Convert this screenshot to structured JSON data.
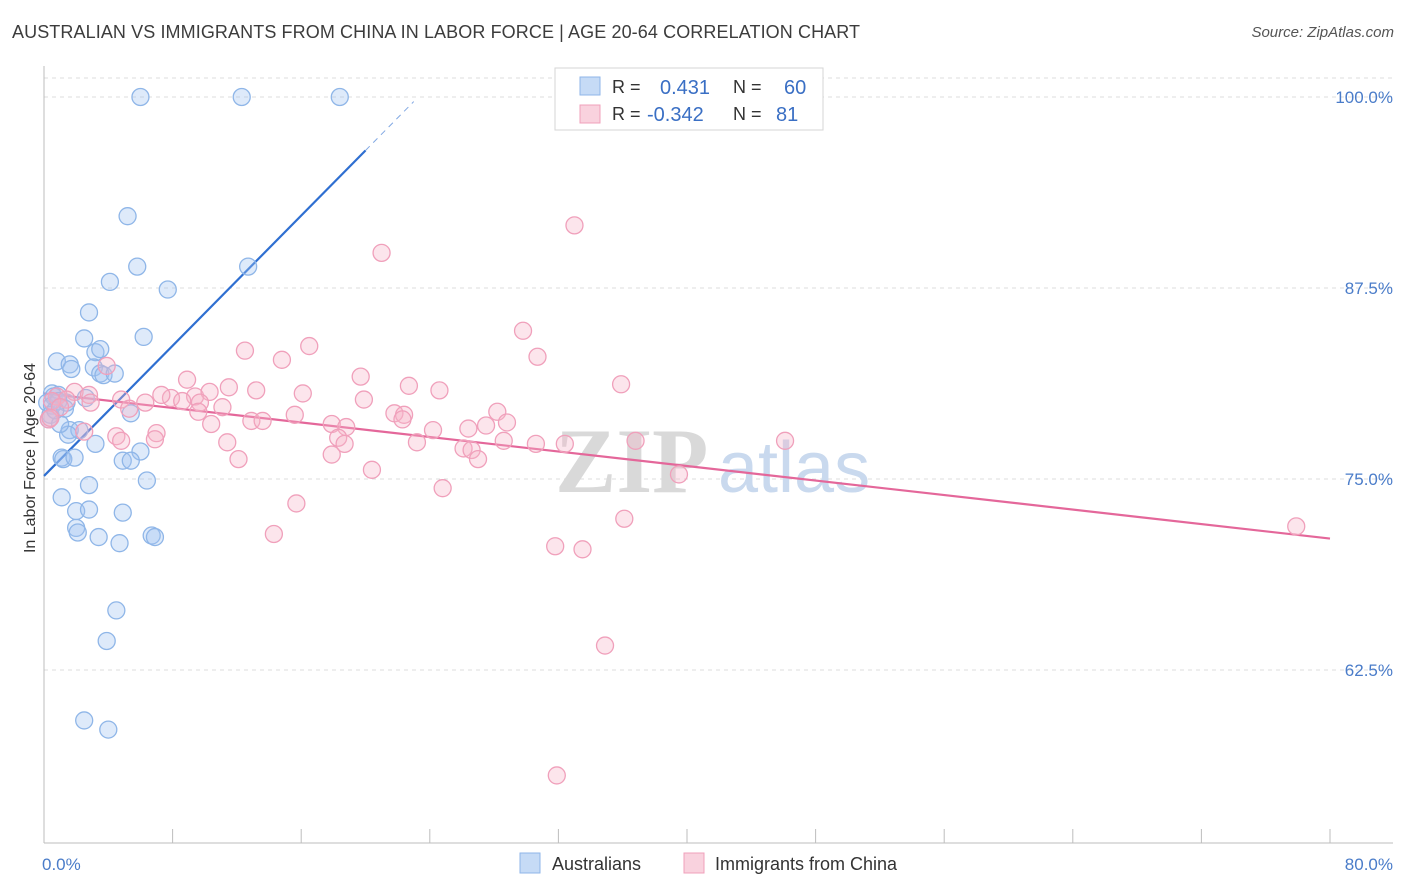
{
  "title": "AUSTRALIAN VS IMMIGRANTS FROM CHINA IN LABOR FORCE | AGE 20-64 CORRELATION CHART",
  "source": "Source: ZipAtlas.com",
  "watermark": {
    "zip": "ZIP",
    "atlas": "atlas"
  },
  "colors": {
    "australians": "#8fb6e8",
    "australians_fill": "rgba(160,195,240,0.35)",
    "australians_line": "#2f6fd1",
    "china": "#f0a0bb",
    "china_fill": "rgba(245,180,200,0.35)",
    "china_line": "#e4679a",
    "tick_label": "#4a7cc9",
    "grid": "#dcdcdc"
  },
  "legend": {
    "rows": [
      {
        "r_label": "R =",
        "r_value": "0.431",
        "n_label": "N =",
        "n_value": "60"
      },
      {
        "r_label": "R =",
        "r_value": "-0.342",
        "n_label": "N =",
        "n_value": "81"
      }
    ]
  },
  "bottom_legend": [
    "Australians",
    "Immigrants from China"
  ],
  "chart_data": {
    "type": "scatter",
    "title": "AUSTRALIAN VS IMMIGRANTS FROM CHINA IN LABOR FORCE | AGE 20-64 CORRELATION CHART",
    "xlabel": "",
    "ylabel": "In Labor Force | Age 20-64",
    "xlim": [
      0,
      80
    ],
    "ylim": [
      50,
      102
    ],
    "x_tick_labels": [
      "0.0%",
      "80.0%"
    ],
    "y_ticks": [
      62.5,
      75.0,
      87.5,
      100.0
    ],
    "y_tick_labels": [
      "62.5%",
      "75.0%",
      "87.5%",
      "100.0%"
    ],
    "grid": true,
    "legend_position": "top-center",
    "series": [
      {
        "name": "Australians",
        "points": [
          [
            6.0,
            100.0
          ],
          [
            12.3,
            100.0
          ],
          [
            18.4,
            100.0
          ],
          [
            5.2,
            92.2
          ],
          [
            5.8,
            88.9
          ],
          [
            12.7,
            88.9
          ],
          [
            4.1,
            87.9
          ],
          [
            7.7,
            87.4
          ],
          [
            2.8,
            85.9
          ],
          [
            2.5,
            84.2
          ],
          [
            6.2,
            84.3
          ],
          [
            3.2,
            83.3
          ],
          [
            3.5,
            83.5
          ],
          [
            0.8,
            82.7
          ],
          [
            1.6,
            82.5
          ],
          [
            1.7,
            82.2
          ],
          [
            3.1,
            82.3
          ],
          [
            3.5,
            81.9
          ],
          [
            3.7,
            81.8
          ],
          [
            4.4,
            81.9
          ],
          [
            0.5,
            80.6
          ],
          [
            0.6,
            80.4
          ],
          [
            0.9,
            80.5
          ],
          [
            0.2,
            80.0
          ],
          [
            0.5,
            79.8
          ],
          [
            1.4,
            80.0
          ],
          [
            0.4,
            79.2
          ],
          [
            0.3,
            78.9
          ],
          [
            5.4,
            79.3
          ],
          [
            1.6,
            78.2
          ],
          [
            2.2,
            78.2
          ],
          [
            1.5,
            77.9
          ],
          [
            3.2,
            77.3
          ],
          [
            6.0,
            76.8
          ],
          [
            1.1,
            76.4
          ],
          [
            1.2,
            76.3
          ],
          [
            1.9,
            76.4
          ],
          [
            4.9,
            76.2
          ],
          [
            5.4,
            76.2
          ],
          [
            2.8,
            74.6
          ],
          [
            6.4,
            74.9
          ],
          [
            1.1,
            73.8
          ],
          [
            2.0,
            72.9
          ],
          [
            2.8,
            73.0
          ],
          [
            4.9,
            72.8
          ],
          [
            2.0,
            71.8
          ],
          [
            2.1,
            71.5
          ],
          [
            3.4,
            71.2
          ],
          [
            4.7,
            70.8
          ],
          [
            6.7,
            71.3
          ],
          [
            6.9,
            71.2
          ],
          [
            4.5,
            66.4
          ],
          [
            3.9,
            64.4
          ],
          [
            2.5,
            59.2
          ],
          [
            4.0,
            58.6
          ],
          [
            0.9,
            80.1
          ],
          [
            1.3,
            79.6
          ],
          [
            1.0,
            78.6
          ],
          [
            2.6,
            80.3
          ],
          [
            0.7,
            79.5
          ]
        ],
        "trend": {
          "x": [
            0.0,
            20.0
          ],
          "y": [
            75.2,
            96.5
          ],
          "dashed_extension_to": [
            23.0,
            99.7
          ]
        }
      },
      {
        "name": "Immigrants from China",
        "points": [
          [
            33.0,
            91.6
          ],
          [
            21.0,
            89.8
          ],
          [
            29.8,
            84.7
          ],
          [
            16.5,
            83.7
          ],
          [
            12.5,
            83.4
          ],
          [
            14.8,
            82.8
          ],
          [
            30.7,
            83.0
          ],
          [
            3.9,
            82.4
          ],
          [
            19.7,
            81.7
          ],
          [
            35.9,
            81.2
          ],
          [
            22.7,
            81.1
          ],
          [
            8.9,
            81.5
          ],
          [
            11.5,
            81.0
          ],
          [
            13.2,
            80.8
          ],
          [
            16.1,
            80.6
          ],
          [
            1.9,
            80.7
          ],
          [
            2.8,
            80.5
          ],
          [
            4.8,
            80.2
          ],
          [
            9.4,
            80.4
          ],
          [
            10.3,
            80.7
          ],
          [
            0.8,
            80.4
          ],
          [
            1.4,
            80.2
          ],
          [
            2.9,
            80.0
          ],
          [
            6.3,
            80.0
          ],
          [
            7.9,
            80.3
          ],
          [
            8.6,
            80.1
          ],
          [
            9.7,
            80.0
          ],
          [
            19.9,
            80.2
          ],
          [
            11.1,
            79.7
          ],
          [
            9.6,
            79.4
          ],
          [
            15.6,
            79.2
          ],
          [
            21.8,
            79.3
          ],
          [
            22.4,
            79.2
          ],
          [
            28.2,
            79.4
          ],
          [
            17.9,
            78.6
          ],
          [
            10.4,
            78.6
          ],
          [
            12.9,
            78.8
          ],
          [
            13.6,
            78.8
          ],
          [
            18.8,
            78.4
          ],
          [
            22.3,
            78.9
          ],
          [
            27.5,
            78.5
          ],
          [
            24.2,
            78.2
          ],
          [
            26.4,
            78.3
          ],
          [
            28.8,
            78.7
          ],
          [
            7.0,
            78.0
          ],
          [
            4.5,
            77.8
          ],
          [
            4.8,
            77.5
          ],
          [
            6.9,
            77.6
          ],
          [
            18.3,
            77.7
          ],
          [
            11.4,
            77.4
          ],
          [
            23.2,
            77.4
          ],
          [
            28.6,
            77.5
          ],
          [
            30.6,
            77.3
          ],
          [
            32.4,
            77.3
          ],
          [
            36.8,
            77.5
          ],
          [
            46.1,
            77.5
          ],
          [
            18.7,
            77.3
          ],
          [
            26.1,
            77.0
          ],
          [
            26.6,
            76.9
          ],
          [
            17.9,
            76.6
          ],
          [
            12.1,
            76.3
          ],
          [
            27.0,
            76.3
          ],
          [
            20.4,
            75.6
          ],
          [
            39.5,
            75.3
          ],
          [
            24.8,
            74.4
          ],
          [
            15.7,
            73.4
          ],
          [
            36.1,
            72.4
          ],
          [
            14.3,
            71.4
          ],
          [
            31.8,
            70.6
          ],
          [
            33.5,
            70.4
          ],
          [
            77.9,
            71.9
          ],
          [
            34.9,
            64.1
          ],
          [
            31.9,
            55.6
          ],
          [
            0.3,
            78.9
          ],
          [
            0.5,
            80.1
          ],
          [
            1.0,
            79.7
          ],
          [
            0.4,
            79.0
          ],
          [
            2.5,
            78.1
          ],
          [
            5.3,
            79.6
          ],
          [
            24.6,
            80.8
          ],
          [
            7.3,
            80.5
          ]
        ],
        "trend": {
          "x": [
            0.0,
            80.0
          ],
          "y": [
            80.6,
            71.1
          ]
        }
      }
    ]
  }
}
